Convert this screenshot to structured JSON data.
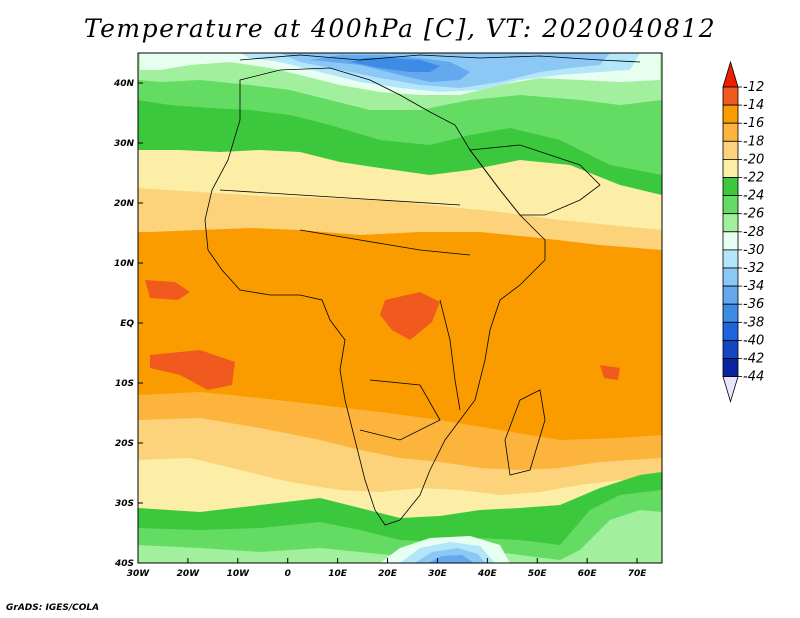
{
  "title": "Temperature at 400hPa [C], VT: 2020040812",
  "footer": "GrADS: IGES/COLA",
  "map": {
    "lon_range": [
      -30,
      75
    ],
    "lat_range": [
      -40,
      45
    ],
    "x_ticks": [
      {
        "lon": -30,
        "label": "30W"
      },
      {
        "lon": -20,
        "label": "20W"
      },
      {
        "lon": -10,
        "label": "10W"
      },
      {
        "lon": 0,
        "label": "0"
      },
      {
        "lon": 10,
        "label": "10E"
      },
      {
        "lon": 20,
        "label": "20E"
      },
      {
        "lon": 30,
        "label": "30E"
      },
      {
        "lon": 40,
        "label": "40E"
      },
      {
        "lon": 50,
        "label": "50E"
      },
      {
        "lon": 60,
        "label": "60E"
      },
      {
        "lon": 70,
        "label": "70E"
      }
    ],
    "y_ticks": [
      {
        "lat": 40,
        "label": "40N"
      },
      {
        "lat": 30,
        "label": "30N"
      },
      {
        "lat": 20,
        "label": "20N"
      },
      {
        "lat": 10,
        "label": "10N"
      },
      {
        "lat": 0,
        "label": "EQ"
      },
      {
        "lat": -10,
        "label": "10S"
      },
      {
        "lat": -20,
        "label": "20S"
      },
      {
        "lat": -30,
        "label": "30S"
      },
      {
        "lat": -40,
        "label": "40S"
      }
    ]
  },
  "colorbar": {
    "levels": [
      "-12",
      "-14",
      "-16",
      "-18",
      "-20",
      "-22",
      "-24",
      "-26",
      "-28",
      "-30",
      "-32",
      "-34",
      "-36",
      "-38",
      "-40",
      "-42",
      "-44"
    ],
    "colors": [
      "#f05a1e",
      "#fa9c00",
      "#fcb43c",
      "#fcd37a",
      "#fceea6",
      "#3cc83c",
      "#64dc64",
      "#a2f09e",
      "#e6fff0",
      "#b4e6fa",
      "#8cc8f5",
      "#64a8ee",
      "#3c8ce6",
      "#1e64dc",
      "#1446c3",
      "#0a24a0"
    ],
    "top_color": "#f01e00",
    "bottom_color": "#e6e6ff"
  }
}
